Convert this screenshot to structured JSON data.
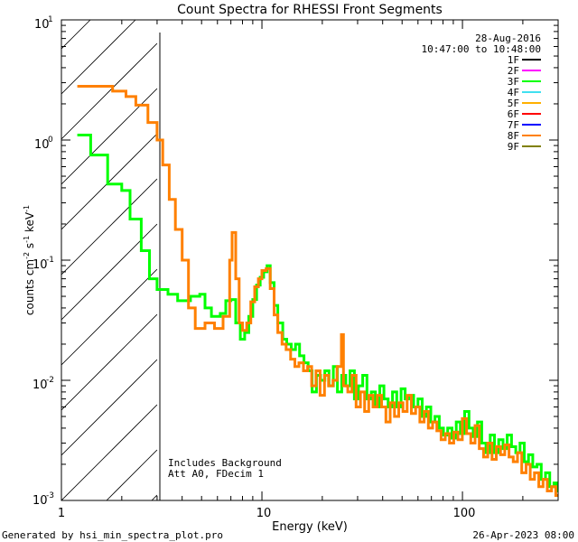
{
  "chart_data": {
    "type": "line",
    "title": "Count Spectra for RHESSI Front Segments",
    "xlabel": "Energy (keV)",
    "ylabel": "counts cm",
    "ylabel_sup1": "-2",
    "ylabel_mid": " s",
    "ylabel_sup2": "-1",
    "ylabel_end": " keV",
    "ylabel_sup3": "-1",
    "x_scale": "log",
    "y_scale": "log",
    "xlim": [
      1,
      300
    ],
    "ylim": [
      0.001,
      10
    ],
    "x_ticks": [
      {
        "value": 1,
        "label": "1"
      },
      {
        "value": 10,
        "label": "10"
      },
      {
        "value": 100,
        "label": "100"
      }
    ],
    "y_ticks": [
      {
        "value": 10,
        "base": "10",
        "exp": "1"
      },
      {
        "value": 1,
        "base": "10",
        "exp": "0"
      },
      {
        "value": 0.1,
        "base": "10",
        "exp": "-1"
      },
      {
        "value": 0.01,
        "base": "10",
        "exp": "-2"
      },
      {
        "value": 0.001,
        "base": "10",
        "exp": "-3"
      }
    ],
    "hatched_region": {
      "x_from": 1,
      "x_to": 3
    },
    "date_text": "28-Aug-2016",
    "time_text": "10:47:00 to 10:48:00",
    "legend": [
      {
        "label": "1F",
        "color": "#000000"
      },
      {
        "label": "2F",
        "color": "#ff00ff"
      },
      {
        "label": "3F",
        "color": "#00ff00"
      },
      {
        "label": "4F",
        "color": "#40e0f0"
      },
      {
        "label": "5F",
        "color": "#ffb000"
      },
      {
        "label": "6F",
        "color": "#ff0000"
      },
      {
        "label": "7F",
        "color": "#0000ff"
      },
      {
        "label": "8F",
        "color": "#ff8000"
      },
      {
        "label": "9F",
        "color": "#808000"
      }
    ],
    "annotations": [
      "Includes Background",
      "Att A0, FDecim 1"
    ],
    "series": [
      {
        "name": "3F",
        "color": "#00ff00",
        "bins": [
          [
            1.2,
            1.1
          ],
          [
            1.4,
            0.75
          ],
          [
            1.7,
            0.43
          ],
          [
            2.0,
            0.38
          ],
          [
            2.2,
            0.22
          ],
          [
            2.5,
            0.12
          ],
          [
            2.75,
            0.07
          ],
          [
            3.0,
            0.057
          ],
          [
            3.4,
            0.052
          ],
          [
            3.8,
            0.046
          ],
          [
            4.4,
            0.05
          ],
          [
            4.9,
            0.052
          ],
          [
            5.2,
            0.04
          ],
          [
            5.6,
            0.034
          ],
          [
            6.2,
            0.036
          ],
          [
            6.6,
            0.046
          ],
          [
            7.0,
            0.047
          ],
          [
            7.4,
            0.03
          ],
          [
            7.8,
            0.022
          ],
          [
            8.2,
            0.025
          ],
          [
            8.6,
            0.034
          ],
          [
            9.0,
            0.047
          ],
          [
            9.4,
            0.062
          ],
          [
            9.8,
            0.072
          ],
          [
            10.2,
            0.08
          ],
          [
            10.6,
            0.09
          ],
          [
            11.0,
            0.065
          ],
          [
            11.5,
            0.042
          ],
          [
            12.0,
            0.03
          ],
          [
            12.7,
            0.022
          ],
          [
            13.3,
            0.02
          ],
          [
            14.0,
            0.018
          ],
          [
            14.7,
            0.02
          ],
          [
            15.4,
            0.016
          ],
          [
            16.2,
            0.014
          ],
          [
            17.0,
            0.012
          ],
          [
            17.8,
            0.008
          ],
          [
            18.7,
            0.011
          ],
          [
            19.6,
            0.01
          ],
          [
            20.6,
            0.012
          ],
          [
            21.6,
            0.009
          ],
          [
            22.7,
            0.013
          ],
          [
            23.8,
            0.008
          ],
          [
            25.0,
            0.011
          ],
          [
            26.2,
            0.009
          ],
          [
            27.5,
            0.012
          ],
          [
            28.9,
            0.007
          ],
          [
            30.3,
            0.009
          ],
          [
            31.8,
            0.011
          ],
          [
            33.4,
            0.007
          ],
          [
            35.1,
            0.008
          ],
          [
            36.8,
            0.006
          ],
          [
            38.7,
            0.009
          ],
          [
            40.6,
            0.007
          ],
          [
            42.6,
            0.006
          ],
          [
            44.8,
            0.008
          ],
          [
            47.0,
            0.006
          ],
          [
            49.4,
            0.0085
          ],
          [
            51.8,
            0.007
          ],
          [
            54.4,
            0.0075
          ],
          [
            57.1,
            0.006
          ],
          [
            60.0,
            0.007
          ],
          [
            63.0,
            0.005
          ],
          [
            66.1,
            0.006
          ],
          [
            69.5,
            0.0045
          ],
          [
            72.9,
            0.005
          ],
          [
            76.6,
            0.004
          ],
          [
            80.4,
            0.0035
          ],
          [
            84.4,
            0.004
          ],
          [
            88.7,
            0.0033
          ],
          [
            93.1,
            0.0045
          ],
          [
            97.7,
            0.0036
          ],
          [
            102.6,
            0.0055
          ],
          [
            107.8,
            0.004
          ],
          [
            113.2,
            0.0034
          ],
          [
            118.8,
            0.0045
          ],
          [
            124.8,
            0.003
          ],
          [
            131.0,
            0.0025
          ],
          [
            137.6,
            0.0035
          ],
          [
            144.4,
            0.0025
          ],
          [
            151.7,
            0.0032
          ],
          [
            159.3,
            0.0027
          ],
          [
            167.2,
            0.0035
          ],
          [
            175.6,
            0.0028
          ],
          [
            184.4,
            0.0025
          ],
          [
            193.6,
            0.003
          ],
          [
            203.3,
            0.0021
          ],
          [
            213.4,
            0.0024
          ],
          [
            224.1,
            0.0019
          ],
          [
            235.3,
            0.002
          ],
          [
            247.1,
            0.0015
          ],
          [
            259.4,
            0.0017
          ],
          [
            272.4,
            0.0013
          ],
          [
            286.0,
            0.0014
          ],
          [
            295.0,
            0.0012
          ]
        ]
      },
      {
        "name": "8F",
        "color": "#ff8000",
        "bins": [
          [
            1.2,
            2.8
          ],
          [
            1.65,
            2.8
          ],
          [
            1.8,
            2.55
          ],
          [
            2.1,
            2.3
          ],
          [
            2.35,
            1.95
          ],
          [
            2.7,
            1.4
          ],
          [
            3.0,
            1.0
          ],
          [
            3.2,
            0.62
          ],
          [
            3.45,
            0.32
          ],
          [
            3.7,
            0.18
          ],
          [
            4.0,
            0.1
          ],
          [
            4.3,
            0.04
          ],
          [
            4.65,
            0.027
          ],
          [
            5.2,
            0.03
          ],
          [
            5.8,
            0.027
          ],
          [
            6.4,
            0.034
          ],
          [
            6.9,
            0.1
          ],
          [
            7.1,
            0.17
          ],
          [
            7.4,
            0.07
          ],
          [
            7.7,
            0.03
          ],
          [
            8.0,
            0.026
          ],
          [
            8.4,
            0.03
          ],
          [
            8.8,
            0.045
          ],
          [
            9.2,
            0.06
          ],
          [
            9.6,
            0.07
          ],
          [
            10.0,
            0.082
          ],
          [
            10.5,
            0.085
          ],
          [
            11.0,
            0.058
          ],
          [
            11.5,
            0.035
          ],
          [
            12.0,
            0.025
          ],
          [
            12.6,
            0.02
          ],
          [
            13.2,
            0.018
          ],
          [
            13.9,
            0.015
          ],
          [
            14.6,
            0.013
          ],
          [
            15.3,
            0.014
          ],
          [
            16.1,
            0.012
          ],
          [
            16.9,
            0.013
          ],
          [
            17.7,
            0.009
          ],
          [
            18.6,
            0.012
          ],
          [
            19.5,
            0.0075
          ],
          [
            20.5,
            0.011
          ],
          [
            21.5,
            0.009
          ],
          [
            22.6,
            0.01
          ],
          [
            23.7,
            0.013
          ],
          [
            24.9,
            0.024
          ],
          [
            25.5,
            0.009
          ],
          [
            26.8,
            0.008
          ],
          [
            28.1,
            0.011
          ],
          [
            29.5,
            0.006
          ],
          [
            31.0,
            0.008
          ],
          [
            32.5,
            0.0055
          ],
          [
            34.1,
            0.0075
          ],
          [
            35.8,
            0.006
          ],
          [
            37.6,
            0.0075
          ],
          [
            39.5,
            0.006
          ],
          [
            41.5,
            0.0045
          ],
          [
            43.6,
            0.0065
          ],
          [
            45.8,
            0.005
          ],
          [
            48.1,
            0.0065
          ],
          [
            50.5,
            0.0055
          ],
          [
            53.0,
            0.0075
          ],
          [
            55.6,
            0.0053
          ],
          [
            58.4,
            0.006
          ],
          [
            61.3,
            0.0045
          ],
          [
            64.4,
            0.0055
          ],
          [
            67.6,
            0.004
          ],
          [
            71.0,
            0.0045
          ],
          [
            74.5,
            0.0038
          ],
          [
            78.2,
            0.0032
          ],
          [
            82.1,
            0.0036
          ],
          [
            86.2,
            0.003
          ],
          [
            90.5,
            0.0037
          ],
          [
            95.0,
            0.0032
          ],
          [
            99.8,
            0.0048
          ],
          [
            104.8,
            0.0036
          ],
          [
            110.0,
            0.003
          ],
          [
            115.5,
            0.0042
          ],
          [
            121.3,
            0.0027
          ],
          [
            127.4,
            0.0023
          ],
          [
            133.7,
            0.003
          ],
          [
            140.4,
            0.0022
          ],
          [
            147.4,
            0.0028
          ],
          [
            154.8,
            0.0024
          ],
          [
            162.5,
            0.0029
          ],
          [
            170.7,
            0.0023
          ],
          [
            179.2,
            0.0021
          ],
          [
            188.2,
            0.0025
          ],
          [
            197.6,
            0.0017
          ],
          [
            207.5,
            0.002
          ],
          [
            217.8,
            0.0015
          ],
          [
            228.7,
            0.0017
          ],
          [
            240.2,
            0.0013
          ],
          [
            252.2,
            0.0015
          ],
          [
            264.8,
            0.0012
          ],
          [
            278.0,
            0.0013
          ],
          [
            292.0,
            0.0011
          ]
        ]
      }
    ]
  },
  "footer": {
    "generated_by": "Generated by hsi_min_spectra_plot.pro",
    "timestamp": "26-Apr-2023 08:00"
  }
}
